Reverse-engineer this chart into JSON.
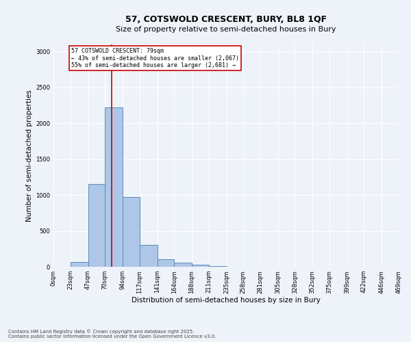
{
  "title": "57, COTSWOLD CRESCENT, BURY, BL8 1QF",
  "subtitle": "Size of property relative to semi-detached houses in Bury",
  "xlabel": "Distribution of semi-detached houses by size in Bury",
  "ylabel": "Number of semi-detached properties",
  "property_label": "57 COTSWOLD CRESCENT: 79sqm",
  "pct_smaller": "43% of semi-detached houses are smaller (2,067)",
  "pct_larger": "55% of semi-detached houses are larger (2,681)",
  "property_size": 79,
  "bin_edges": [
    0,
    23,
    47,
    70,
    94,
    117,
    141,
    164,
    188,
    211,
    235,
    258,
    281,
    305,
    328,
    352,
    375,
    399,
    422,
    446,
    469
  ],
  "bar_heights": [
    0,
    65,
    1150,
    2220,
    970,
    305,
    105,
    55,
    30,
    5,
    0,
    0,
    0,
    0,
    0,
    0,
    0,
    0,
    0,
    0
  ],
  "bar_color": "#aec6e8",
  "bar_edge_color": "#5b8db8",
  "vline_color": "#cc0000",
  "vline_x": 79,
  "annotation_box_color": "#cc0000",
  "background_color": "#eef2f9",
  "grid_color": "#ffffff",
  "ylim": [
    0,
    3100
  ],
  "yticks": [
    0,
    500,
    1000,
    1500,
    2000,
    2500,
    3000
  ],
  "title_fontsize": 9,
  "subtitle_fontsize": 8,
  "ylabel_fontsize": 7.5,
  "xlabel_fontsize": 7.5,
  "tick_fontsize": 6,
  "annot_fontsize": 6,
  "footnote": "Contains HM Land Registry data © Crown copyright and database right 2025.\nContains public sector information licensed under the Open Government Licence v3.0."
}
